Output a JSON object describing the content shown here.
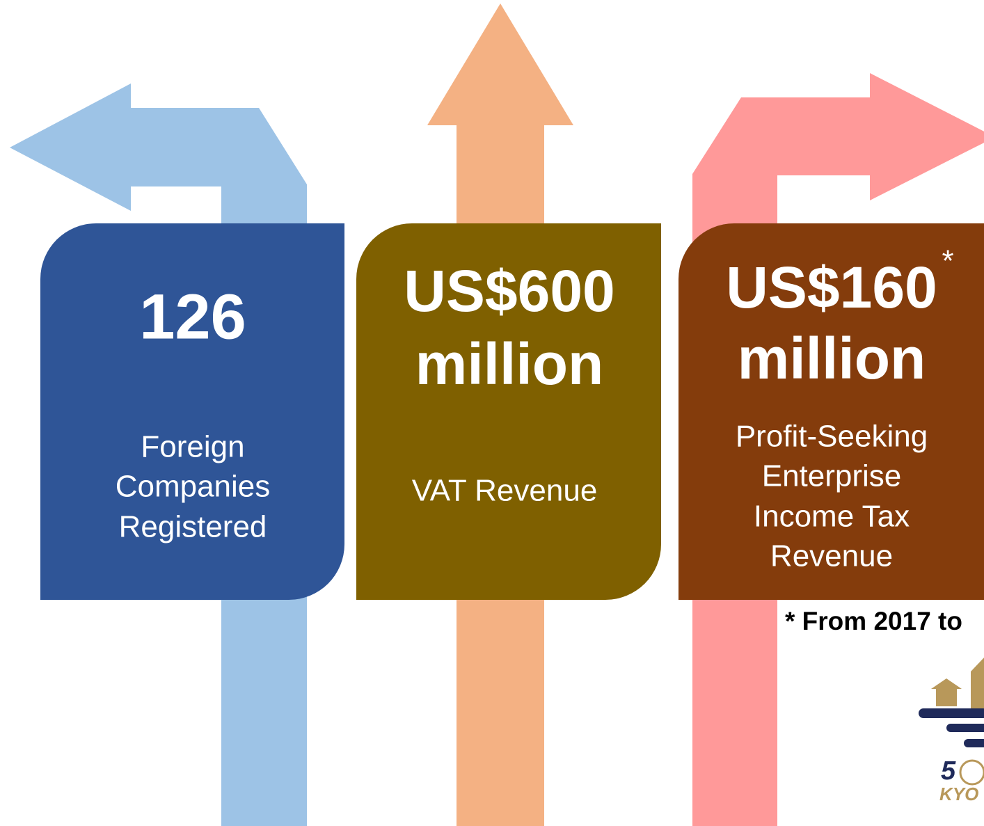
{
  "cards": [
    {
      "headline": [
        "126"
      ],
      "caption": [
        "Foreign",
        "Companies",
        "Registered"
      ]
    },
    {
      "headline": [
        "US$600",
        "million"
      ],
      "caption": [
        "VAT Revenue"
      ]
    },
    {
      "headline": [
        "US$160",
        "million"
      ],
      "marker": "*",
      "caption": [
        "Profit-Seeking",
        "Enterprise",
        "Income Tax",
        "Revenue"
      ]
    }
  ],
  "footnote": "* From 2017 to",
  "logo": {
    "number": "5",
    "name": "KYO"
  }
}
